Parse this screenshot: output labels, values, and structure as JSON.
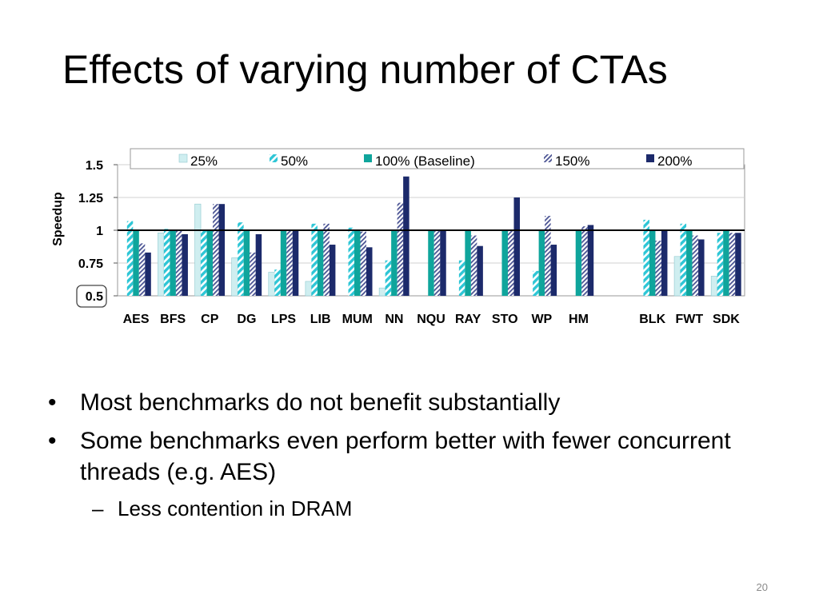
{
  "slide": {
    "title": "Effects of varying number of CTAs",
    "bullets": [
      "Most benchmarks do not benefit substantially",
      "Some benchmarks even perform better with fewer concurrent threads (e.g. AES)"
    ],
    "sub_bullets": [
      "Less contention in DRAM"
    ],
    "bullet_marker": "•",
    "sub_marker": "–",
    "page_number": "20"
  },
  "chart_data": {
    "type": "bar",
    "title": "",
    "xlabel": "",
    "ylabel": "Speedup",
    "ylim": [
      0.5,
      1.5
    ],
    "yticks": [
      "0.5",
      "0.75",
      "1",
      "1.25",
      "1.5"
    ],
    "baseline": 1,
    "grid": true,
    "legend_position": "top",
    "categories": [
      "AES",
      "BFS",
      "CP",
      "DG",
      "LPS",
      "LIB",
      "MUM",
      "NN",
      "NQU",
      "RAY",
      "STO",
      "WP",
      "HM",
      "",
      "BLK",
      "FWT",
      "SDK"
    ],
    "series": [
      {
        "name": "25%",
        "color": "#cfeef0",
        "pattern": "solid",
        "values": [
          null,
          0.98,
          1.2,
          0.79,
          0.68,
          0.61,
          null,
          0.56,
          null,
          null,
          null,
          null,
          null,
          null,
          null,
          0.8,
          0.65
        ]
      },
      {
        "name": "50%",
        "color": "#2ec6d6",
        "pattern": "diagonal-stripes",
        "values": [
          1.07,
          1.01,
          1.0,
          1.06,
          0.7,
          1.05,
          1.02,
          0.77,
          null,
          0.77,
          null,
          0.69,
          null,
          null,
          1.08,
          1.05,
          0.98
        ]
      },
      {
        "name": "100% (Baseline)",
        "color": "#0fa59c",
        "pattern": "solid",
        "values": [
          1.0,
          1.0,
          1.0,
          1.0,
          1.0,
          1.0,
          1.0,
          1.0,
          1.0,
          1.0,
          1.0,
          1.0,
          1.0,
          null,
          1.0,
          1.0,
          1.0
        ]
      },
      {
        "name": "150%",
        "color": "#6a71a8",
        "pattern": "diagonal-hatch",
        "values": [
          0.9,
          1.0,
          1.2,
          0.83,
          1.0,
          1.05,
          0.99,
          1.21,
          1.0,
          0.96,
          1.0,
          1.11,
          1.03,
          null,
          0.92,
          0.96,
          0.98
        ]
      },
      {
        "name": "200%",
        "color": "#1c2a6b",
        "pattern": "solid",
        "values": [
          0.83,
          0.97,
          1.2,
          0.97,
          1.0,
          0.89,
          0.87,
          1.41,
          1.0,
          0.88,
          1.25,
          0.89,
          1.04,
          null,
          1.0,
          0.93,
          0.98
        ]
      }
    ]
  }
}
